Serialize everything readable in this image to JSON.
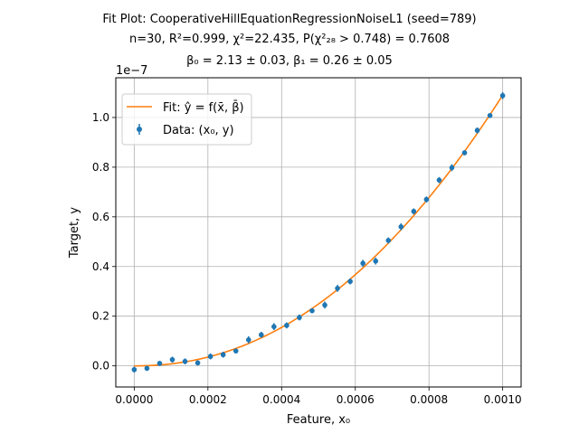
{
  "title": {
    "line1": "Fit Plot: CooperativeHillEquationRegressionNoiseL1 (seed=789)",
    "line2": "n=30, R²=0.999, χ²=22.435, P(χ²₂₈ > 0.748) = 0.7608",
    "line3": "β₀ = 2.13 ± 0.03, β₁ = 0.26 ± 0.05"
  },
  "colors": {
    "data": "#1f77b4",
    "fit": "#ff7f0e",
    "grid": "#b0b0b0"
  },
  "chart_data": {
    "type": "scatter",
    "xlabel": "Feature, x₀",
    "ylabel": "Target, y",
    "y_offset_label": "1e−7",
    "xlim": [
      -5e-05,
      0.00105
    ],
    "ylim": [
      -0.085,
      1.16
    ],
    "y_scale_exponent": -7,
    "xticks": [
      0.0,
      0.0002,
      0.0004,
      0.0006,
      0.0008,
      0.001
    ],
    "xtick_labels": [
      "0.0000",
      "0.0002",
      "0.0004",
      "0.0006",
      "0.0008",
      "0.0010"
    ],
    "yticks": [
      0.0,
      0.2,
      0.4,
      0.6,
      0.8,
      1.0
    ],
    "ytick_labels": [
      "0.0",
      "0.2",
      "0.4",
      "0.6",
      "0.8",
      "1.0"
    ],
    "grid": true,
    "legend_position": "top-left",
    "series": [
      {
        "name": "Data: (x₀, y)",
        "kind": "errorbar",
        "x": [
          0.0,
          3.45e-05,
          6.9e-05,
          0.0001034,
          0.0001379,
          0.0001724,
          0.0002069,
          0.0002414,
          0.0002759,
          0.0003103,
          0.0003448,
          0.0003793,
          0.0004138,
          0.0004483,
          0.0004828,
          0.0005172,
          0.0005517,
          0.0005862,
          0.0006207,
          0.0006552,
          0.0006897,
          0.0007241,
          0.0007586,
          0.0007931,
          0.0008276,
          0.0008621,
          0.0008966,
          0.000931,
          0.0009655,
          0.001
        ],
        "y": [
          -0.015,
          -0.01,
          0.01,
          0.025,
          0.018,
          0.012,
          0.038,
          0.045,
          0.06,
          0.105,
          0.125,
          0.158,
          0.163,
          0.195,
          0.222,
          0.245,
          0.312,
          0.34,
          0.413,
          0.422,
          0.505,
          0.56,
          0.622,
          0.67,
          0.748,
          0.798,
          0.858,
          0.948,
          1.008,
          1.088
        ],
        "yerr": [
          0.012,
          0.01,
          0.01,
          0.012,
          0.012,
          0.01,
          0.012,
          0.012,
          0.01,
          0.014,
          0.012,
          0.014,
          0.012,
          0.012,
          0.01,
          0.014,
          0.014,
          0.012,
          0.014,
          0.014,
          0.012,
          0.014,
          0.012,
          0.012,
          0.012,
          0.014,
          0.01,
          0.012,
          0.01,
          0.014
        ]
      },
      {
        "name": "Fit: ŷ = f(x̄, β̄)",
        "kind": "line",
        "model": "y = 1.09e-7 * (x/0.001)^2.13"
      }
    ]
  }
}
